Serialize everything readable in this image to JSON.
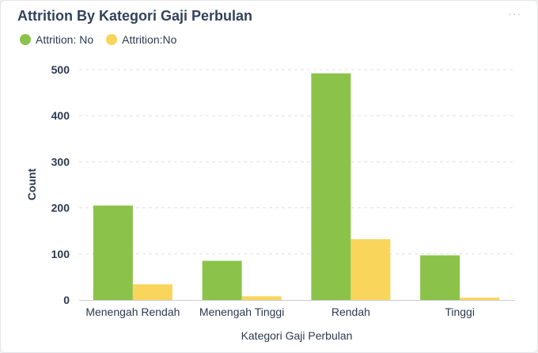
{
  "card": {
    "title": "Attrition By Kategori Gaji Perbulan",
    "menu_icon": "ellipsis-icon",
    "menu_glyph": "···"
  },
  "colors": {
    "series_green": "#8bc34a",
    "series_yellow": "#f9d55b",
    "gridline": "#dde0e5",
    "text": "#2e3a4f"
  },
  "chart_data": {
    "type": "bar",
    "title": "Attrition By Kategori Gaji Perbulan",
    "xlabel": "Kategori Gaji Perbulan",
    "ylabel": "Count",
    "categories": [
      "Menengah Rendah",
      "Menengah Tinggi",
      "Rendah",
      "Tinggi"
    ],
    "series": [
      {
        "name": "Attrition: No",
        "color": "#8bc34a",
        "values": [
          205,
          85,
          492,
          97
        ]
      },
      {
        "name": "Attrition:No",
        "color": "#f9d55b",
        "values": [
          34,
          8,
          132,
          5
        ]
      }
    ],
    "ylim": [
      0,
      500
    ],
    "yticks": [
      "0",
      "100",
      "200",
      "300",
      "400",
      "500"
    ],
    "grid": true,
    "legend_position": "top-left"
  }
}
